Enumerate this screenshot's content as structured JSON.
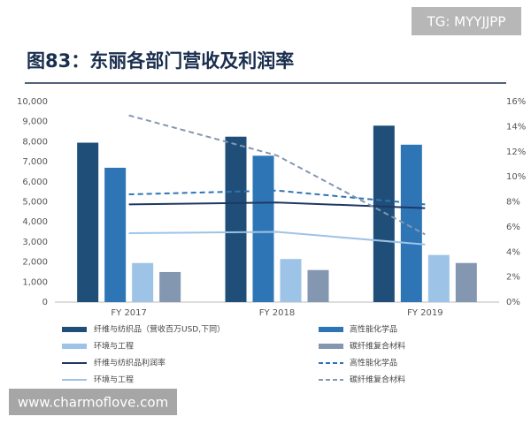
{
  "watermark_top": "TG: MYYJJPP",
  "watermark_bottom": "www.charmoflove.com",
  "chart_data": {
    "type": "bar",
    "title": "图83：东丽各部门营收及利润率",
    "categories": [
      "FY 2017",
      "FY 2018",
      "FY 2019"
    ],
    "ylim": [
      0,
      10000
    ],
    "yticks": [
      0,
      {
        "value": 1000,
        "label": "1,000"
      },
      {
        "value": 2000,
        "label": "2,000"
      },
      {
        "value": 3000,
        "label": "3,000"
      },
      {
        "value": 4000,
        "label": "4,000"
      },
      {
        "value": 5000,
        "label": "5,000"
      },
      {
        "value": 6000,
        "label": "6,000"
      },
      {
        "value": 7000,
        "label": "7,000"
      },
      {
        "value": 8000,
        "label": "8,000"
      },
      {
        "value": 9000,
        "label": "9,000"
      },
      {
        "value": 10000,
        "label": "10,000"
      }
    ],
    "y2lim": [
      0,
      16
    ],
    "y2ticks": [
      {
        "value": 0,
        "label": "0%"
      },
      {
        "value": 2,
        "label": "2%"
      },
      {
        "value": 4,
        "label": "4%"
      },
      {
        "value": 6,
        "label": "6%"
      },
      {
        "value": 8,
        "label": "8%"
      },
      {
        "value": 10,
        "label": "10%"
      },
      {
        "value": 12,
        "label": "12%"
      },
      {
        "value": 14,
        "label": "14%"
      },
      {
        "value": 16,
        "label": "16%"
      }
    ],
    "grid": false,
    "series": [
      {
        "name": "纤维与纺织品（营收百万USD,下同）",
        "type": "bar",
        "color": "#1f4e79",
        "values": [
          7950,
          8250,
          8800
        ]
      },
      {
        "name": "高性能化学品",
        "type": "bar",
        "color": "#2e75b6",
        "values": [
          6700,
          7300,
          7850
        ]
      },
      {
        "name": "环境与工程",
        "type": "bar",
        "color": "#9dc3e6",
        "values": [
          1950,
          2150,
          2350
        ]
      },
      {
        "name": "碳纤维复合材料",
        "type": "bar",
        "color": "#8497b0",
        "values": [
          1500,
          1600,
          1950
        ]
      },
      {
        "name": "纤维与纺织品利润率",
        "type": "line",
        "axis": "y2",
        "line_style": "solid",
        "color": "#1f3864",
        "values": [
          7.8,
          7.95,
          7.5
        ]
      },
      {
        "name": "高性能化学品",
        "type": "line",
        "axis": "y2",
        "line_style": "dashed",
        "color": "#2e75b6",
        "values": [
          8.6,
          8.9,
          7.8
        ]
      },
      {
        "name": "环境与工程",
        "type": "line",
        "axis": "y2",
        "line_style": "solid",
        "color": "#9dc3e6",
        "values": [
          5.5,
          5.6,
          4.6
        ]
      },
      {
        "name": "碳纤维复合材料",
        "type": "line",
        "axis": "y2",
        "line_style": "dashed",
        "color": "#8497b0",
        "values": [
          14.9,
          11.7,
          5.4
        ]
      }
    ]
  }
}
